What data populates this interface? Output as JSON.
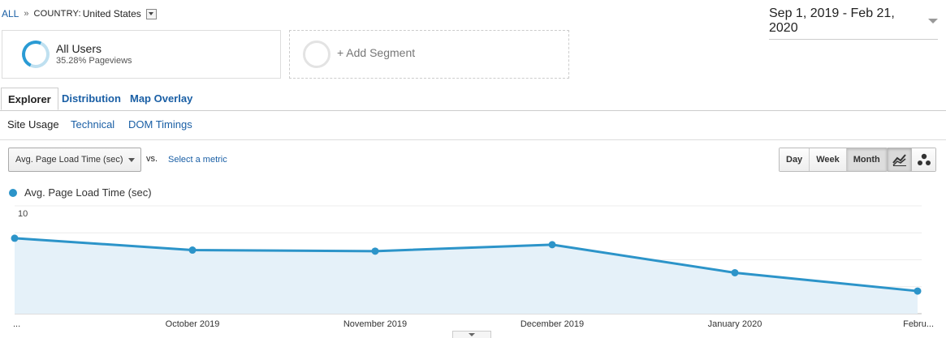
{
  "breadcrumb": {
    "all": "ALL",
    "separator": "»",
    "dimension_label": "COUNTRY:",
    "dimension_value": "United States"
  },
  "date_range": "Sep 1, 2019 - Feb 21, 2020",
  "segments": [
    {
      "name": "All Users",
      "detail": "35.28% Pageviews"
    },
    {
      "name": "+ Add Segment"
    }
  ],
  "view_tabs": [
    "Explorer",
    "Distribution",
    "Map Overlay"
  ],
  "sub_tabs": [
    "Site Usage",
    "Technical",
    "DOM Timings"
  ],
  "metric_selector": {
    "selected": "Avg. Page Load Time (sec)",
    "vs": "vs.",
    "second_metric": "Select a metric"
  },
  "granularity": {
    "options": [
      "Day",
      "Week",
      "Month"
    ],
    "active": "Month"
  },
  "chart_icons": [
    "line-chart-icon",
    "motion-chart-icon"
  ],
  "colors": {
    "series": "#2c94c9",
    "fill": "#e5f1f9",
    "link": "#1a5fa5"
  },
  "chart_data": {
    "type": "area",
    "series": [
      {
        "name": "Avg. Page Load Time (sec)",
        "values": [
          7.0,
          5.9,
          5.8,
          6.4,
          3.8,
          2.1
        ]
      }
    ],
    "categories": [
      "...",
      "October 2019",
      "November 2019",
      "December 2019",
      "January 2020",
      "Febru..."
    ],
    "y_ticks": [
      "10",
      "5"
    ],
    "ylim": [
      0,
      10
    ],
    "legend_position": "top-left",
    "grid": true
  }
}
